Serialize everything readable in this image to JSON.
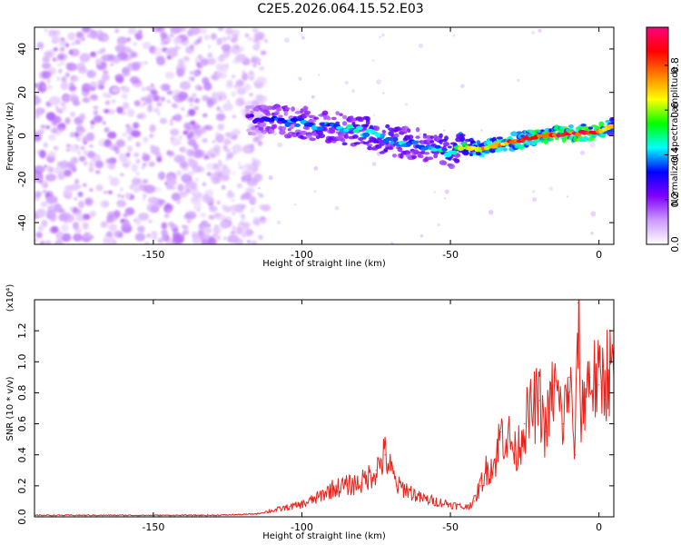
{
  "title": "C2E5.2026.064.15.52.E03",
  "chart_data": [
    {
      "type": "heatmap",
      "xlabel": "Height of straight line (km)",
      "ylabel": "Frequency (Hz)",
      "xlim": [
        -190,
        5
      ],
      "ylim": [
        -50,
        50
      ],
      "x_ticks": [
        "-150",
        "-100",
        "-50",
        "0"
      ],
      "y_ticks": [
        "-40",
        "-20",
        "0",
        "20",
        "40"
      ],
      "colorbar": {
        "label": "Normalized spectral amplitude",
        "range": [
          0,
          0.97
        ],
        "ticks": [
          "0.0",
          "0.2",
          "0.4",
          "0.6",
          "0.8"
        ],
        "colors": [
          "#ffffff",
          "#cc99ff",
          "#8000ff",
          "#0000ff",
          "#00ffff",
          "#00ff00",
          "#ffff00",
          "#ff8000",
          "#ff0000",
          "#ff0080"
        ]
      },
      "ridge": {
        "x": [
          -118,
          -110,
          -100,
          -90,
          -80,
          -70,
          -60,
          -50,
          -45,
          -40,
          -30,
          -20,
          -10,
          0,
          5
        ],
        "frequency": [
          8,
          7,
          6,
          4,
          2,
          -2,
          -4,
          -8,
          -5,
          -6,
          -3,
          0,
          1,
          2,
          5
        ],
        "amplitude": [
          0.25,
          0.35,
          0.4,
          0.4,
          0.45,
          0.45,
          0.4,
          0.45,
          0.65,
          0.7,
          0.8,
          0.85,
          0.9,
          0.9,
          0.6
        ]
      },
      "noise_region": {
        "x_range": [
          -190,
          -118
        ],
        "amplitude_range": [
          0.05,
          0.15
        ]
      }
    },
    {
      "type": "line",
      "xlabel": "Height of straight line (km)",
      "ylabel": "SNR (10 * v/v)",
      "y_multiplier": "(x10⁴)",
      "xlim": [
        -190,
        5
      ],
      "ylim": [
        0,
        1.4
      ],
      "x_ticks": [
        "-150",
        "-100",
        "-50",
        "0"
      ],
      "y_ticks": [
        "0.0",
        "0.2",
        "0.4",
        "0.6",
        "0.8",
        "1.0",
        "1.2"
      ],
      "series": [
        {
          "color": "#e8231b",
          "x": [
            -190,
            -180,
            -170,
            -160,
            -150,
            -140,
            -130,
            -120,
            -115,
            -110,
            -105,
            -100,
            -95,
            -90,
            -85,
            -80,
            -75,
            -72,
            -70,
            -68,
            -65,
            -60,
            -55,
            -50,
            -45,
            -42,
            -40,
            -38,
            -35,
            -33,
            -30,
            -28,
            -25,
            -22,
            -20,
            -18,
            -15,
            -12,
            -10,
            -8,
            -7,
            -6,
            -5,
            -3,
            0,
            3,
            5
          ],
          "y": [
            0.01,
            0.01,
            0.01,
            0.01,
            0.01,
            0.01,
            0.01,
            0.015,
            0.02,
            0.04,
            0.06,
            0.08,
            0.12,
            0.18,
            0.2,
            0.22,
            0.3,
            0.4,
            0.3,
            0.2,
            0.18,
            0.12,
            0.1,
            0.08,
            0.06,
            0.1,
            0.2,
            0.3,
            0.35,
            0.55,
            0.5,
            0.4,
            0.6,
            0.7,
            0.75,
            0.55,
            0.85,
            0.6,
            0.9,
            0.4,
            1.38,
            0.6,
            0.8,
            0.9,
            0.85,
            0.95,
            0.9
          ]
        }
      ]
    }
  ]
}
